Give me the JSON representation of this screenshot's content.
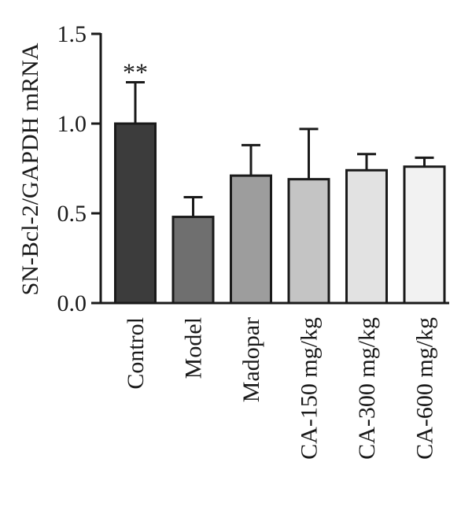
{
  "chart_data": {
    "type": "bar",
    "title": "",
    "xlabel": "",
    "ylabel": "SN-Bcl-2/GAPDH mRNA",
    "ylim": [
      0,
      1.5
    ],
    "yticks": [
      "0.0",
      "0.5",
      "1.0",
      "1.5"
    ],
    "ytick_values": [
      0,
      0.5,
      1.0,
      1.5
    ],
    "categories": [
      "Control",
      "Model",
      "Madopar",
      "CA-150 mg/kg",
      "CA-300 mg/kg",
      "CA-600 mg/kg"
    ],
    "values": [
      1.0,
      0.48,
      0.71,
      0.69,
      0.74,
      0.76
    ],
    "error_upper": [
      0.23,
      0.11,
      0.17,
      0.28,
      0.09,
      0.05
    ],
    "annotations": [
      {
        "category": "Control",
        "text": "**"
      }
    ],
    "bar_colors": [
      "#3c3c3c",
      "#6f6f6f",
      "#9d9d9d",
      "#c4c4c4",
      "#e2e2e2",
      "#f2f2f2"
    ],
    "grid": false
  }
}
